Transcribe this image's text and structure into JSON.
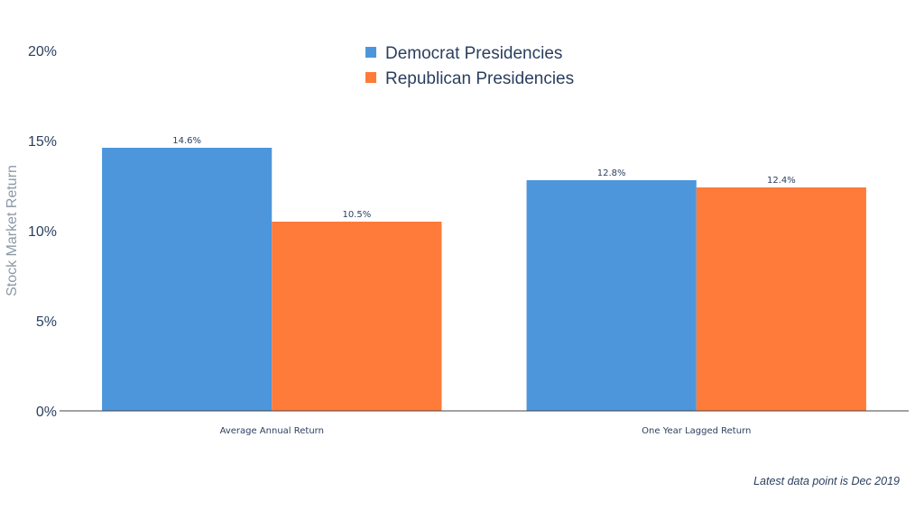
{
  "chart_data": {
    "type": "bar",
    "categories": [
      "Average Annual Return",
      "One Year Lagged Return"
    ],
    "series": [
      {
        "name": "Democrat Presidencies",
        "values": [
          14.6,
          12.8
        ],
        "color": "#4d96dc",
        "labels": [
          "14.6%",
          "12.8%"
        ]
      },
      {
        "name": "Republican Presidencies",
        "values": [
          10.5,
          12.4
        ],
        "color": "#ff7b3a",
        "labels": [
          "10.5%",
          "12.4%"
        ]
      }
    ],
    "ylabel": "Stock Market Return",
    "ylim": [
      0,
      20
    ],
    "yticks": [
      0,
      5,
      10,
      15,
      20
    ],
    "ytick_labels": [
      "0%",
      "5%",
      "10%",
      "15%",
      "20%"
    ],
    "grid": false,
    "legend_position": "top-center",
    "annotation": "Latest data point is Dec 2019"
  }
}
